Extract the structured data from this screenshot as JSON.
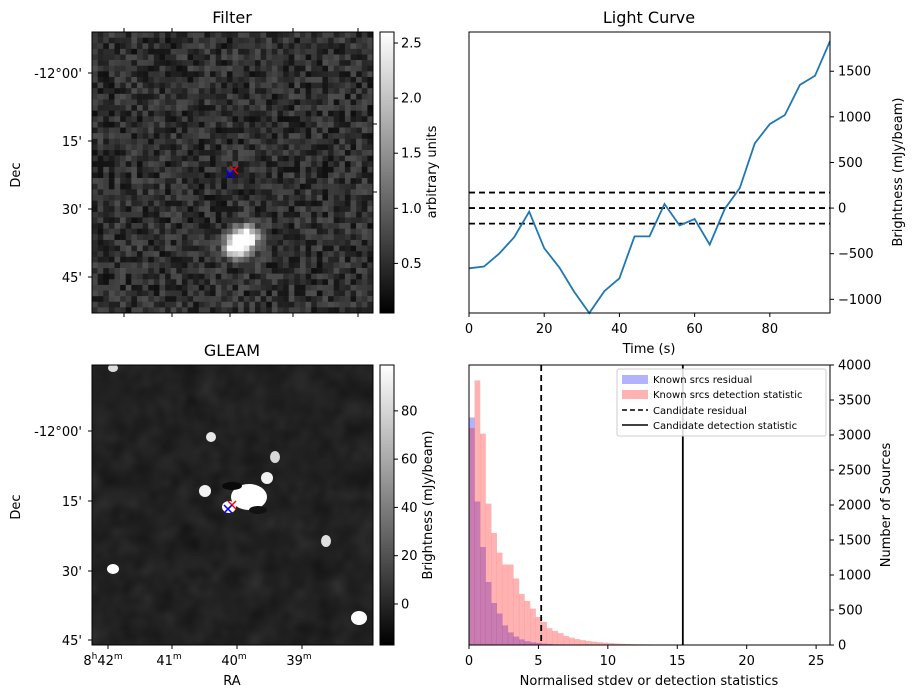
{
  "panels": {
    "filter": {
      "title": "Filter",
      "ylabel": "Dec",
      "dec_ticks": [
        "-12°00'",
        "15'",
        "30'",
        "45'"
      ],
      "colorbar": {
        "label": "arbitrary units",
        "ticks": [
          "0.5",
          "1.0",
          "1.5",
          "2.0",
          "2.5"
        ],
        "range": [
          0.05,
          2.6
        ],
        "cmap": "gray"
      },
      "markers": [
        {
          "symbol": "x",
          "color": "#ff0000"
        },
        {
          "symbol": "x",
          "color": "#0000ff"
        }
      ]
    },
    "gleam": {
      "title": "GLEAM",
      "xlabel": "RA",
      "ylabel": "Dec",
      "ra_ticks": [
        {
          "main": "8",
          "sup1": "h",
          "mid": "42",
          "sup2": "m"
        },
        {
          "main": "41",
          "sup1": "m",
          "mid": "",
          "sup2": ""
        },
        {
          "main": "40",
          "sup1": "m",
          "mid": "",
          "sup2": ""
        },
        {
          "main": "39",
          "sup1": "m",
          "mid": "",
          "sup2": ""
        }
      ],
      "dec_ticks": [
        "-12°00'",
        "15'",
        "30'",
        "45'"
      ],
      "colorbar": {
        "label": "Brightness (mJy/beam)",
        "ticks": [
          "0",
          "20",
          "40",
          "60",
          "80"
        ],
        "range": [
          -17,
          99
        ],
        "cmap": "gray"
      },
      "markers": [
        {
          "symbol": "x",
          "color": "#ff0000"
        },
        {
          "symbol": "x",
          "color": "#0000ff"
        }
      ]
    }
  },
  "chart_data": [
    {
      "type": "line",
      "title": "Light Curve",
      "xlabel": "Time (s)",
      "ylabel": "Brightness (mJy/beam)",
      "xlim": [
        0,
        96
      ],
      "ylim": [
        -1150,
        1930
      ],
      "x_ticks": [
        0,
        20,
        40,
        60,
        80
      ],
      "y_ticks": [
        -1000,
        -500,
        0,
        500,
        1000,
        1500
      ],
      "y_axis_side": "right",
      "color": "#1f77b4",
      "x": [
        0,
        4,
        8,
        12,
        16,
        20,
        24,
        28,
        32,
        36,
        40,
        44,
        48,
        52,
        56,
        60,
        64,
        68,
        72,
        76,
        80,
        84,
        88,
        92,
        96
      ],
      "y": [
        -660,
        -640,
        -500,
        -320,
        -40,
        -440,
        -650,
        -920,
        -1150,
        -910,
        -770,
        -310,
        -310,
        45,
        -190,
        -120,
        -400,
        -10,
        220,
        710,
        920,
        1020,
        1350,
        1450,
        1830
      ],
      "hlines": [
        {
          "y": 170,
          "style": "dashed",
          "color": "#000000"
        },
        {
          "y": 0,
          "style": "dashed",
          "color": "#000000"
        },
        {
          "y": -170,
          "style": "dashed",
          "color": "#000000"
        }
      ]
    },
    {
      "type": "histogram",
      "xlabel": "Normalised stdev or detection statistics",
      "ylabel": "Number of Sources",
      "xlim": [
        0,
        26
      ],
      "ylim": [
        0,
        4000
      ],
      "x_ticks": [
        0,
        5,
        10,
        15,
        20,
        25
      ],
      "y_ticks": [
        0,
        500,
        1000,
        1500,
        2000,
        2500,
        3000,
        3500,
        4000
      ],
      "y_axis_side": "right",
      "legend_position": "top-right",
      "bin_width": 0.4,
      "series": [
        {
          "name": "Known srcs residual",
          "color": "#0000ff",
          "alpha": 0.3,
          "values": [
            3250,
            2050,
            1400,
            900,
            600,
            450,
            280,
            180,
            120,
            80,
            55,
            40,
            30,
            20,
            15,
            10,
            8,
            6,
            4,
            3
          ]
        },
        {
          "name": "Known srcs detection statistic",
          "color": "#ff0000",
          "alpha": 0.3,
          "values": [
            3100,
            3780,
            3020,
            2020,
            1600,
            1320,
            1150,
            1150,
            950,
            730,
            630,
            520,
            400,
            330,
            240,
            200,
            170,
            130,
            105,
            85,
            70,
            58,
            48,
            40,
            34,
            28,
            22,
            18,
            15,
            12,
            10,
            9,
            8,
            7,
            6,
            5,
            4,
            4,
            3,
            3
          ]
        }
      ],
      "vlines": [
        {
          "name": "Candidate residual",
          "x": 5.2,
          "style": "dashed",
          "color": "#000000"
        },
        {
          "name": "Candidate detection statistic",
          "x": 15.4,
          "style": "solid",
          "color": "#000000"
        }
      ]
    }
  ]
}
